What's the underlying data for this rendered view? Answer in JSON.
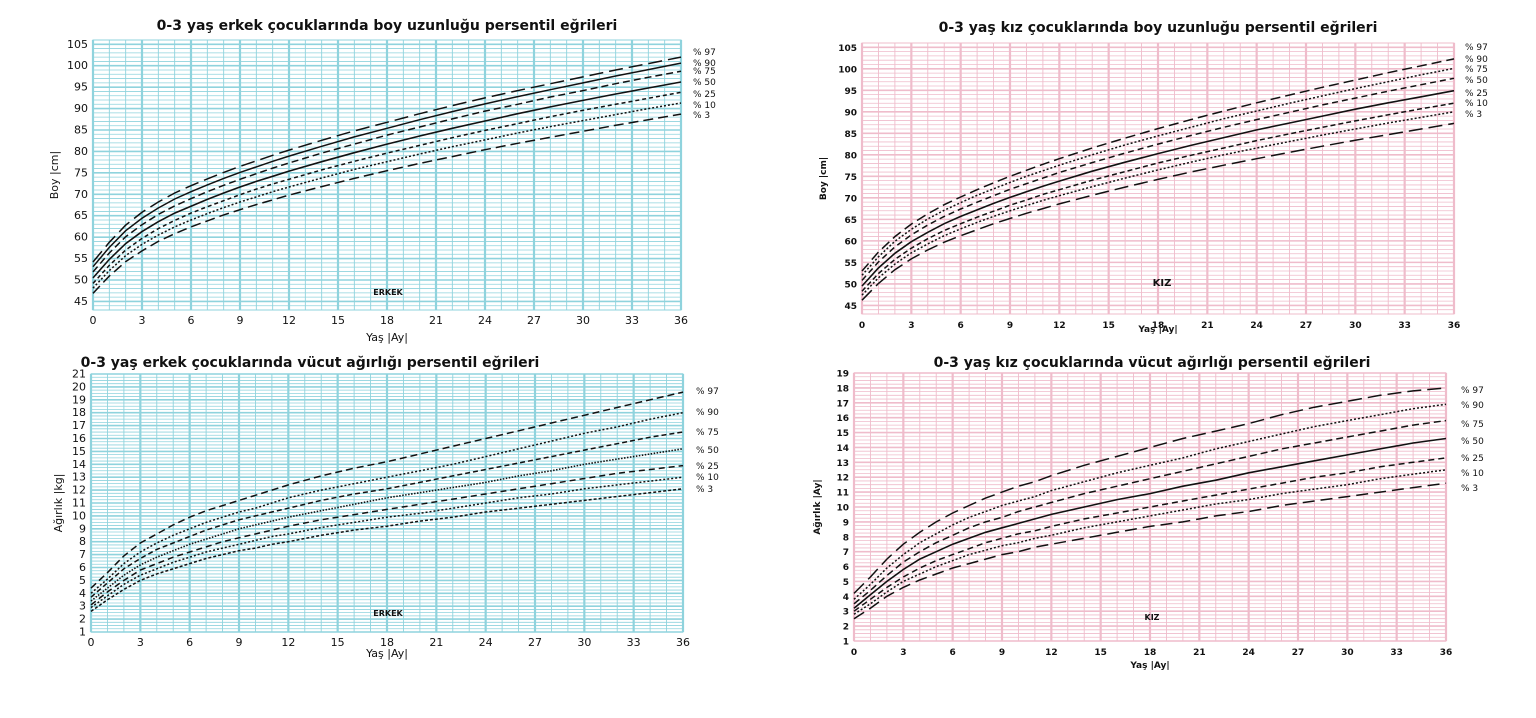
{
  "chart_data": [
    {
      "type": "line",
      "title": "0-3 yaş erkek çocuklarında boy uzunluğu persentil eğrileri",
      "xlabel": "Yaş  |Ay|",
      "ylabel": "Boy |cm|",
      "xlim": [
        0,
        36
      ],
      "ylim": [
        43,
        106
      ],
      "xticks": [
        0,
        3,
        6,
        9,
        12,
        15,
        18,
        21,
        24,
        27,
        30,
        33,
        36
      ],
      "yticks": [
        45,
        50,
        55,
        60,
        65,
        70,
        75,
        80,
        85,
        90,
        95,
        100,
        105
      ],
      "grid": true,
      "grid_color": "#8fd3dd",
      "tag": "ERKEK",
      "x": [
        0,
        1,
        2,
        3,
        4,
        5,
        6,
        7,
        8,
        9,
        10,
        11,
        12,
        14,
        16,
        18,
        20,
        22,
        24,
        26,
        28,
        30,
        32,
        34,
        36
      ],
      "series": [
        {
          "name": "% 97",
          "values": [
            54.2,
            58.8,
            62.8,
            65.8,
            68.2,
            70.3,
            72.0,
            73.6,
            75.1,
            76.5,
            77.8,
            79.1,
            80.3,
            82.6,
            84.8,
            86.8,
            88.8,
            90.7,
            92.5,
            94.2,
            95.8,
            97.4,
            99.0,
            100.5,
            102.0
          ]
        },
        {
          "name": "% 90",
          "values": [
            53.1,
            57.6,
            61.5,
            64.4,
            66.8,
            68.9,
            70.6,
            72.2,
            73.7,
            75.1,
            76.4,
            77.7,
            78.9,
            81.2,
            83.4,
            85.4,
            87.4,
            89.3,
            91.1,
            92.8,
            94.4,
            96.0,
            97.6,
            99.1,
            100.6
          ]
        },
        {
          "name": "% 75",
          "values": [
            51.9,
            56.3,
            60.1,
            62.9,
            65.3,
            67.3,
            69.0,
            70.6,
            72.1,
            73.5,
            74.8,
            76.1,
            77.3,
            79.6,
            81.7,
            83.8,
            85.7,
            87.6,
            89.4,
            91.0,
            92.7,
            94.2,
            95.8,
            97.3,
            98.7
          ]
        },
        {
          "name": "% 50",
          "values": [
            50.5,
            54.8,
            58.5,
            61.3,
            63.6,
            65.6,
            67.2,
            68.8,
            70.3,
            71.7,
            73.0,
            74.2,
            75.4,
            77.6,
            79.7,
            81.7,
            83.6,
            85.4,
            87.1,
            88.8,
            90.4,
            91.9,
            93.4,
            94.8,
            96.2
          ]
        },
        {
          "name": "% 25",
          "values": [
            49.2,
            53.4,
            57.0,
            59.7,
            62.0,
            63.9,
            65.6,
            67.1,
            68.5,
            69.9,
            71.2,
            72.4,
            73.5,
            75.7,
            77.7,
            79.6,
            81.4,
            83.2,
            84.9,
            86.5,
            88.1,
            89.6,
            91.0,
            92.4,
            93.8
          ]
        },
        {
          "name": "% 10",
          "values": [
            48.1,
            52.2,
            55.7,
            58.3,
            60.5,
            62.4,
            64.0,
            65.5,
            66.9,
            68.2,
            69.4,
            70.6,
            71.7,
            73.8,
            75.8,
            77.6,
            79.4,
            81.1,
            82.7,
            84.3,
            85.8,
            87.2,
            88.6,
            90.0,
            91.3
          ]
        },
        {
          "name": "% 3",
          "values": [
            46.9,
            50.9,
            54.3,
            56.8,
            59.0,
            60.8,
            62.4,
            63.8,
            65.2,
            66.4,
            67.6,
            68.7,
            69.8,
            71.8,
            73.7,
            75.5,
            77.2,
            78.8,
            80.4,
            81.9,
            83.3,
            84.7,
            86.1,
            87.4,
            88.7
          ]
        }
      ]
    },
    {
      "type": "line",
      "title": "0-3 yaş kız çocuklarında boy uzunluğu persentil eğrileri",
      "xlabel": "Yaş |Ay|",
      "ylabel": "Boy |cm|",
      "xlim": [
        0,
        36
      ],
      "ylim": [
        43,
        106
      ],
      "xticks": [
        0,
        3,
        6,
        9,
        12,
        15,
        18,
        21,
        24,
        27,
        30,
        33,
        36
      ],
      "yticks": [
        45,
        50,
        55,
        60,
        65,
        70,
        75,
        80,
        85,
        90,
        95,
        100,
        105
      ],
      "grid": true,
      "grid_color": "#efbccb",
      "tag": "KIZ",
      "x": [
        0,
        1,
        2,
        3,
        4,
        5,
        6,
        7,
        8,
        9,
        10,
        11,
        12,
        14,
        16,
        18,
        20,
        22,
        24,
        26,
        28,
        30,
        32,
        34,
        36
      ],
      "series": [
        {
          "name": "% 97",
          "values": [
            53.0,
            57.4,
            61.0,
            63.9,
            66.3,
            68.4,
            70.2,
            71.9,
            73.5,
            75.0,
            76.4,
            77.8,
            79.1,
            81.6,
            83.9,
            86.1,
            88.2,
            90.2,
            92.1,
            93.9,
            95.7,
            97.4,
            99.1,
            100.7,
            102.3
          ]
        },
        {
          "name": "% 90",
          "values": [
            52.0,
            56.3,
            59.9,
            62.7,
            65.1,
            67.1,
            68.9,
            70.6,
            72.1,
            73.6,
            75.0,
            76.3,
            77.6,
            80.0,
            82.3,
            84.4,
            86.4,
            88.4,
            90.2,
            92.0,
            93.7,
            95.4,
            97.0,
            98.6,
            100.1
          ]
        },
        {
          "name": "% 75",
          "values": [
            50.8,
            55.1,
            58.6,
            61.4,
            63.7,
            65.7,
            67.4,
            69.0,
            70.5,
            72.0,
            73.3,
            74.6,
            75.9,
            78.2,
            80.4,
            82.5,
            84.5,
            86.4,
            88.2,
            89.9,
            91.6,
            93.2,
            94.8,
            96.3,
            97.8
          ]
        },
        {
          "name": "% 50",
          "values": [
            49.5,
            53.7,
            57.1,
            59.8,
            62.0,
            64.0,
            65.7,
            67.2,
            68.7,
            70.1,
            71.4,
            72.7,
            73.9,
            76.2,
            78.3,
            80.3,
            82.2,
            84.0,
            85.8,
            87.4,
            89.0,
            90.6,
            92.1,
            93.5,
            94.9
          ]
        },
        {
          "name": "% 25",
          "values": [
            48.3,
            52.4,
            55.7,
            58.3,
            60.5,
            62.4,
            64.0,
            65.5,
            66.9,
            68.3,
            69.5,
            70.8,
            71.9,
            74.1,
            76.1,
            78.1,
            79.9,
            81.6,
            83.3,
            84.9,
            86.4,
            87.9,
            89.3,
            90.7,
            92.0
          ]
        },
        {
          "name": "% 10",
          "values": [
            47.4,
            51.4,
            54.6,
            57.2,
            59.3,
            61.2,
            62.8,
            64.3,
            65.7,
            67.0,
            68.2,
            69.4,
            70.5,
            72.6,
            74.6,
            76.5,
            78.3,
            80.0,
            81.6,
            83.1,
            84.6,
            86.0,
            87.4,
            88.7,
            90.0
          ]
        },
        {
          "name": "% 3",
          "values": [
            46.2,
            50.1,
            53.3,
            55.8,
            57.9,
            59.7,
            61.2,
            62.6,
            64.0,
            65.2,
            66.4,
            67.5,
            68.6,
            70.6,
            72.5,
            74.3,
            76.0,
            77.6,
            79.1,
            80.6,
            82.0,
            83.4,
            84.7,
            86.0,
            87.3
          ]
        }
      ]
    },
    {
      "type": "line",
      "title": "0-3 yaş erkek çocuklarında vücut ağırlığı persentil eğrileri",
      "xlabel": "Yaş  |Ay|",
      "ylabel": "Ağırlık |kg|",
      "xlim": [
        0,
        36
      ],
      "ylim": [
        1,
        21
      ],
      "xticks": [
        0,
        3,
        6,
        9,
        12,
        15,
        18,
        21,
        24,
        27,
        30,
        33,
        36
      ],
      "yticks": [
        1,
        2,
        3,
        4,
        5,
        6,
        7,
        8,
        9,
        10,
        11,
        12,
        13,
        14,
        15,
        16,
        17,
        18,
        19,
        20,
        21
      ],
      "grid": true,
      "grid_color": "#8fd3dd",
      "tag": "ERKEK",
      "x": [
        0,
        1,
        2,
        3,
        4,
        5,
        6,
        7,
        8,
        9,
        10,
        11,
        12,
        14,
        16,
        18,
        20,
        22,
        24,
        26,
        28,
        30,
        32,
        34,
        36
      ],
      "series": [
        {
          "name": "% 97",
          "values": [
            4.4,
            5.6,
            6.9,
            7.9,
            8.6,
            9.3,
            9.9,
            10.4,
            10.8,
            11.2,
            11.6,
            12.0,
            12.4,
            13.1,
            13.7,
            14.2,
            14.8,
            15.4,
            16.0,
            16.6,
            17.2,
            17.8,
            18.4,
            19.0,
            19.6
          ]
        },
        {
          "name": "% 90",
          "values": [
            4.0,
            5.1,
            6.3,
            7.2,
            7.9,
            8.5,
            9.0,
            9.5,
            9.9,
            10.3,
            10.6,
            11.0,
            11.4,
            12.0,
            12.5,
            13.0,
            13.5,
            14.0,
            14.6,
            15.2,
            15.8,
            16.4,
            16.9,
            17.5,
            18.0
          ]
        },
        {
          "name": "% 75",
          "values": [
            3.7,
            4.8,
            5.9,
            6.7,
            7.4,
            7.9,
            8.4,
            8.9,
            9.3,
            9.7,
            10.0,
            10.3,
            10.6,
            11.2,
            11.7,
            12.1,
            12.6,
            13.1,
            13.6,
            14.1,
            14.6,
            15.1,
            15.6,
            16.1,
            16.5
          ]
        },
        {
          "name": "% 50",
          "values": [
            3.4,
            4.4,
            5.4,
            6.2,
            6.8,
            7.3,
            7.8,
            8.2,
            8.6,
            9.0,
            9.3,
            9.6,
            9.9,
            10.4,
            10.9,
            11.4,
            11.8,
            12.2,
            12.6,
            13.1,
            13.5,
            14.0,
            14.4,
            14.8,
            15.2
          ]
        },
        {
          "name": "% 25",
          "values": [
            3.1,
            4.1,
            5.0,
            5.8,
            6.3,
            6.8,
            7.2,
            7.6,
            8.0,
            8.3,
            8.6,
            8.9,
            9.2,
            9.7,
            10.1,
            10.5,
            10.9,
            11.3,
            11.7,
            12.1,
            12.5,
            12.9,
            13.3,
            13.6,
            13.9
          ]
        },
        {
          "name": "% 10",
          "values": [
            2.9,
            3.8,
            4.7,
            5.4,
            5.9,
            6.4,
            6.8,
            7.2,
            7.5,
            7.8,
            8.1,
            8.4,
            8.6,
            9.1,
            9.5,
            9.9,
            10.2,
            10.6,
            11.0,
            11.4,
            11.7,
            12.1,
            12.4,
            12.7,
            13.0
          ]
        },
        {
          "name": "% 3",
          "values": [
            2.6,
            3.5,
            4.3,
            5.0,
            5.5,
            5.9,
            6.3,
            6.7,
            7.0,
            7.3,
            7.5,
            7.8,
            8.0,
            8.5,
            8.9,
            9.2,
            9.6,
            9.9,
            10.3,
            10.6,
            10.9,
            11.2,
            11.5,
            11.8,
            12.1
          ]
        }
      ]
    },
    {
      "type": "line",
      "title": "0-3 yaş kız çocuklarında vücut ağırlığı persentil eğrileri",
      "xlabel": "Yaş |Ay|",
      "ylabel": "Ağırlık |Ay|",
      "xlim": [
        0,
        36
      ],
      "ylim": [
        1,
        19
      ],
      "xticks": [
        0,
        3,
        6,
        9,
        12,
        15,
        18,
        21,
        24,
        27,
        30,
        33,
        36
      ],
      "yticks": [
        1,
        2,
        3,
        4,
        5,
        6,
        7,
        8,
        9,
        10,
        11,
        12,
        13,
        14,
        15,
        16,
        17,
        18,
        19
      ],
      "grid": true,
      "grid_color": "#efbccb",
      "tag": "KIZ",
      "x": [
        0,
        1,
        2,
        3,
        4,
        5,
        6,
        7,
        8,
        9,
        10,
        11,
        12,
        14,
        16,
        18,
        20,
        22,
        24,
        26,
        28,
        30,
        32,
        34,
        36
      ],
      "series": [
        {
          "name": "% 97",
          "values": [
            4.2,
            5.3,
            6.5,
            7.5,
            8.3,
            9.0,
            9.6,
            10.1,
            10.6,
            11.0,
            11.4,
            11.7,
            12.1,
            12.8,
            13.4,
            14.0,
            14.6,
            15.1,
            15.6,
            16.2,
            16.7,
            17.1,
            17.5,
            17.8,
            18.0
          ]
        },
        {
          "name": "% 90",
          "values": [
            3.8,
            4.8,
            5.9,
            6.8,
            7.6,
            8.2,
            8.8,
            9.3,
            9.7,
            10.1,
            10.4,
            10.7,
            11.1,
            11.7,
            12.3,
            12.8,
            13.3,
            13.9,
            14.4,
            14.9,
            15.4,
            15.8,
            16.2,
            16.6,
            16.9
          ]
        },
        {
          "name": "% 75",
          "values": [
            3.5,
            4.4,
            5.4,
            6.3,
            7.0,
            7.6,
            8.1,
            8.6,
            9.0,
            9.3,
            9.7,
            10.0,
            10.3,
            10.9,
            11.4,
            11.9,
            12.4,
            12.9,
            13.4,
            13.9,
            14.3,
            14.7,
            15.1,
            15.5,
            15.8
          ]
        },
        {
          "name": "% 50",
          "values": [
            3.2,
            4.1,
            5.0,
            5.8,
            6.5,
            7.0,
            7.5,
            7.9,
            8.3,
            8.6,
            8.9,
            9.2,
            9.5,
            10.0,
            10.5,
            10.9,
            11.4,
            11.8,
            12.3,
            12.7,
            13.1,
            13.5,
            13.9,
            14.3,
            14.6
          ]
        },
        {
          "name": "% 25",
          "values": [
            3.0,
            3.8,
            4.6,
            5.3,
            5.9,
            6.4,
            6.8,
            7.2,
            7.6,
            7.9,
            8.2,
            8.4,
            8.7,
            9.2,
            9.6,
            10.0,
            10.4,
            10.8,
            11.2,
            11.6,
            12.0,
            12.3,
            12.7,
            13.0,
            13.3
          ]
        },
        {
          "name": "% 10",
          "values": [
            2.8,
            3.5,
            4.3,
            5.0,
            5.5,
            6.0,
            6.4,
            6.8,
            7.1,
            7.4,
            7.6,
            7.9,
            8.1,
            8.6,
            9.0,
            9.4,
            9.8,
            10.2,
            10.5,
            10.9,
            11.2,
            11.5,
            11.9,
            12.2,
            12.5
          ]
        },
        {
          "name": "% 3",
          "values": [
            2.5,
            3.2,
            4.0,
            4.6,
            5.1,
            5.5,
            5.9,
            6.2,
            6.5,
            6.8,
            7.0,
            7.3,
            7.5,
            7.9,
            8.3,
            8.7,
            9.0,
            9.4,
            9.7,
            10.1,
            10.4,
            10.7,
            11.0,
            11.3,
            11.6
          ]
        }
      ]
    }
  ]
}
